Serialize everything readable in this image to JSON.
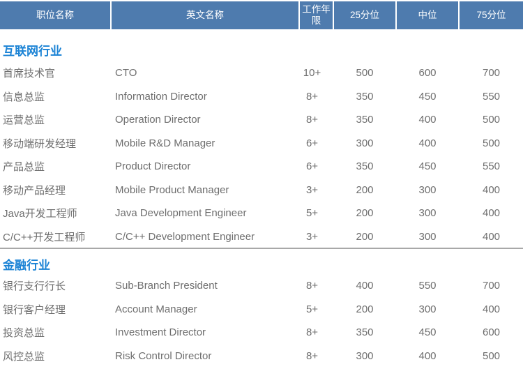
{
  "table": {
    "columns": [
      {
        "label": "职位名称"
      },
      {
        "label": "英文名称"
      },
      {
        "label": "工作年限"
      },
      {
        "label": "25分位"
      },
      {
        "label": "中位"
      },
      {
        "label": "75分位"
      }
    ],
    "sections": [
      {
        "title": "互联网行业",
        "rows": [
          [
            "首席技术官",
            "CTO",
            "10+",
            "500",
            "600",
            "700"
          ],
          [
            "信息总监",
            "Information Director",
            "8+",
            "350",
            "450",
            "550"
          ],
          [
            "运营总监",
            "Operation Director",
            "8+",
            "350",
            "400",
            "500"
          ],
          [
            "移动端研发经理",
            "Mobile R&D Manager",
            "6+",
            "300",
            "400",
            "500"
          ],
          [
            "产品总监",
            "Product Director",
            "6+",
            "350",
            "450",
            "550"
          ],
          [
            "移动产品经理",
            "Mobile Product Manager",
            "3+",
            "200",
            "300",
            "400"
          ],
          [
            "Java开发工程师",
            "Java Development Engineer",
            "5+",
            "200",
            "300",
            "400"
          ],
          [
            "C/C++开发工程师",
            "C/C++ Development Engineer",
            "3+",
            "200",
            "300",
            "400"
          ]
        ]
      },
      {
        "title": "金融行业",
        "rows": [
          [
            "银行支行行长",
            "Sub-Branch President",
            "8+",
            "400",
            "550",
            "700"
          ],
          [
            "银行客户经理",
            "Account Manager",
            "5+",
            "200",
            "300",
            "400"
          ],
          [
            "投资总监",
            "Investment Director",
            "8+",
            "350",
            "450",
            "600"
          ],
          [
            "风控总监",
            "Risk Control Director",
            "8+",
            "300",
            "400",
            "500"
          ]
        ]
      }
    ]
  },
  "colors": {
    "header_bg": "#4e7bae",
    "header_text": "#ffffff",
    "section_title": "#1b83d5",
    "row_text": "#6e6e6e",
    "divider": "#a8a8a8",
    "background": "#ffffff"
  }
}
